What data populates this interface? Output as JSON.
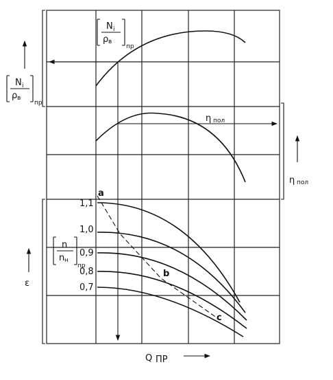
{
  "power_label": {
    "numerator": "N",
    "numerator_sub": "i",
    "denominator": "ρ",
    "denominator_sub": "в",
    "outer_sub": "пр"
  },
  "efficiency_label": {
    "symbol": "η",
    "subscript": "пол"
  },
  "pressure_label": "ε",
  "flow_label": {
    "symbol": "Q",
    "subscript": "ПР"
  },
  "speed_label": {
    "numerator": "n",
    "denominator": "n",
    "denominator_sub": "н",
    "outer_sub": "пр"
  },
  "speed_curves": [
    "1,1",
    "1,0",
    "0,9",
    "0,8",
    "0,7"
  ],
  "points": [
    "a",
    "b",
    "c"
  ]
}
